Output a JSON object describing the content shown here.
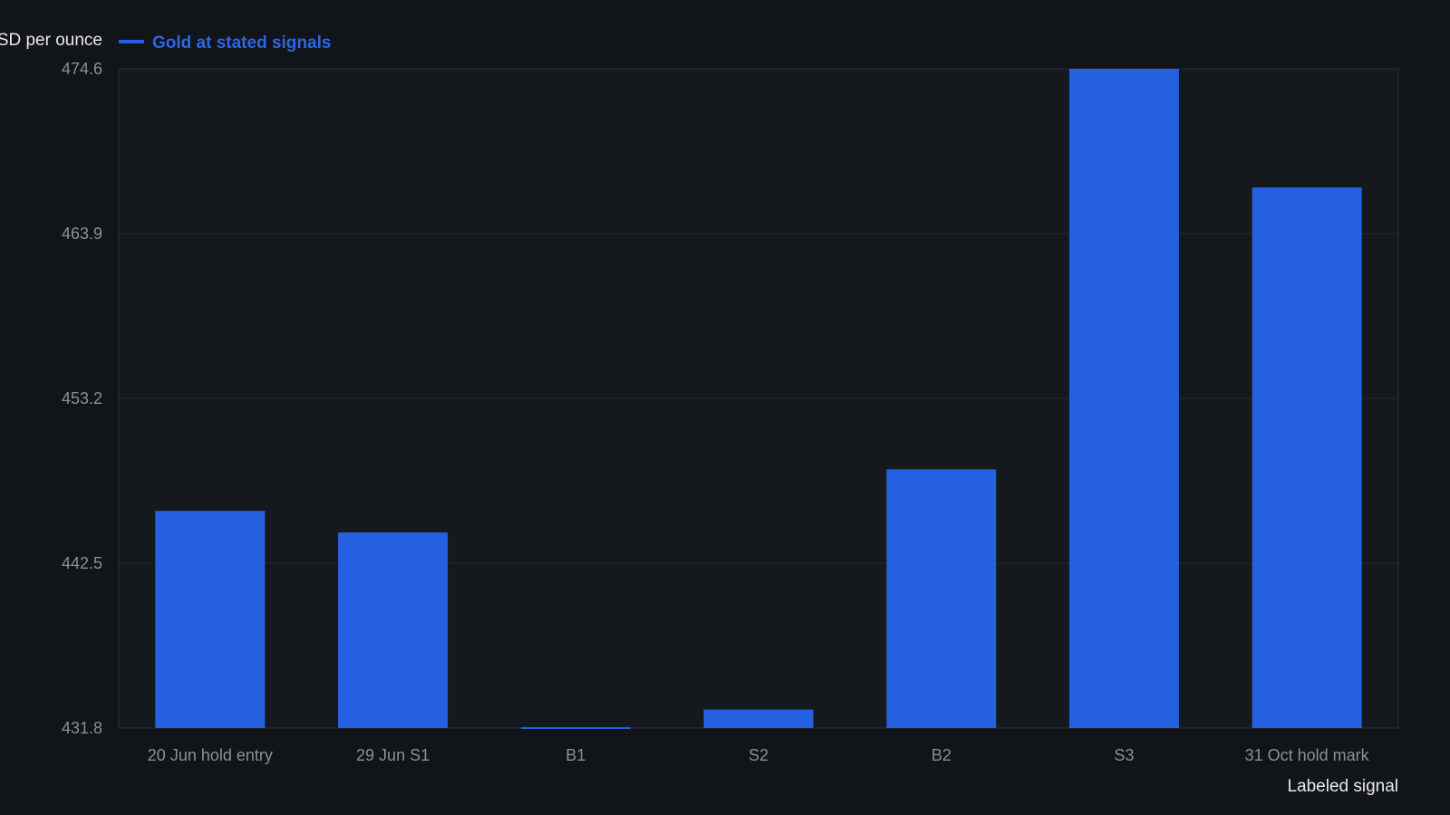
{
  "chart_data": {
    "type": "bar",
    "title": "",
    "ylabel": "USD per ounce",
    "xlabel": "Labeled signal",
    "categories": [
      "20 Jun hold entry",
      "29 Jun S1",
      "B1",
      "S2",
      "B2",
      "S3",
      "31 Oct hold mark"
    ],
    "series": [
      {
        "name": "Gold at stated signals",
        "values": [
          445.9,
          444.5,
          431.7,
          433.0,
          448.6,
          474.6,
          466.9
        ]
      }
    ],
    "ylim": [
      431.8,
      474.6
    ],
    "yticks": [
      "474.6",
      "463.9",
      "453.2",
      "442.5",
      "431.8"
    ],
    "grid": true,
    "legend_position": "top-left"
  },
  "colors": {
    "background": "#111418",
    "plot_background": "#15181d",
    "bar": "#2560e0",
    "legend_text": "#2d67e6",
    "grid": "#262a31",
    "frame": "#2a2e35"
  }
}
